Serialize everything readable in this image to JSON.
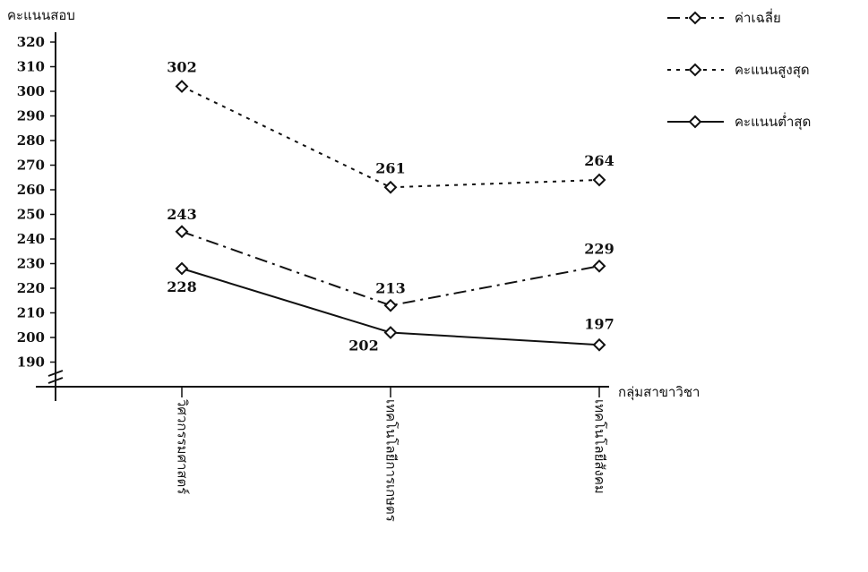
{
  "chart_data": {
    "type": "line",
    "y_axis_label": "คะแนนสอบ",
    "x_axis_label": "กลุ่มสาขาวิชา",
    "categories": [
      "วิศวกรรมศาสตร์",
      "เทคโนโลยีการเกษตร",
      "เทคโนโลยีสังคม"
    ],
    "series": [
      {
        "name": "ค่าเฉลี่ย",
        "color": "#111111",
        "dash": "14 6 3 6",
        "values": [
          243,
          213,
          229
        ]
      },
      {
        "name": "คะแนนสูงสุด",
        "color": "#111111",
        "dash": "4 6",
        "values": [
          302,
          261,
          264
        ]
      },
      {
        "name": "คะแนนต่ำสุด",
        "color": "#111111",
        "dash": "none",
        "values": [
          228,
          202,
          197
        ]
      }
    ],
    "ylim": [
      180,
      320
    ],
    "yticks": [
      190,
      200,
      210,
      220,
      230,
      240,
      250,
      260,
      270,
      280,
      290,
      300,
      310,
      320
    ],
    "data_labels": true,
    "legend_position": "top-right"
  }
}
